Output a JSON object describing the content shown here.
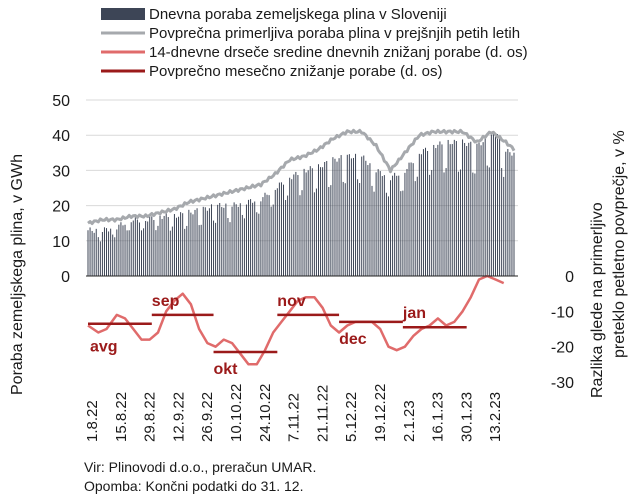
{
  "chart_data": {
    "type": "bar",
    "title": "",
    "ylabel": "Poraba zemeljskega plina, v GWh",
    "ylabel_right": "Razlika glede na primerljivo preteklo petletno povprečje, v %",
    "ylim": [
      0,
      50
    ],
    "yticks": [
      "50",
      "40",
      "30",
      "20",
      "10",
      "0"
    ],
    "ylim_right": [
      -30,
      0
    ],
    "yticks_right": [
      "0",
      "-10",
      "-20",
      "-30"
    ],
    "xticks": [
      "1.8.22",
      "15.8.22",
      "29.8.22",
      "12.9.22",
      "26.9.22",
      "10.10.22",
      "24.10.22",
      "7.11.22",
      "21.11.22",
      "5.12.22",
      "19.12.22",
      "2.1.23",
      "16.1.23",
      "30.1.23",
      "13.2.23"
    ],
    "legend": [
      {
        "name": "Dnevna poraba zemeljskega plina v Sloveniji",
        "type": "bar",
        "color": "#3d4556"
      },
      {
        "name": "Povprečna primerljiva poraba plina v prejšnjih petih letih",
        "type": "line",
        "color": "#a6a9ad"
      },
      {
        "name": "14-dnevne drseče sredine dnevnih znižanj porabe (d. os)",
        "type": "line",
        "color": "#e06b6b"
      },
      {
        "name": "Povprečno mesečno znižanje porabe (d. os)",
        "type": "line",
        "color": "#9b1a1a"
      }
    ],
    "series": [
      {
        "name": "Dnevna poraba zemeljskega plina v Sloveniji",
        "kind": "daily",
        "anchors": [
          [
            0,
            13
          ],
          [
            7,
            13
          ],
          [
            14,
            14
          ],
          [
            21,
            16
          ],
          [
            28,
            16
          ],
          [
            35,
            17
          ],
          [
            42,
            17
          ],
          [
            49,
            18
          ],
          [
            56,
            19
          ],
          [
            63,
            20
          ],
          [
            70,
            20
          ],
          [
            77,
            21
          ],
          [
            84,
            22
          ],
          [
            91,
            25
          ],
          [
            98,
            28
          ],
          [
            105,
            30
          ],
          [
            112,
            31
          ],
          [
            119,
            33
          ],
          [
            126,
            34
          ],
          [
            133,
            34
          ],
          [
            140,
            30
          ],
          [
            147,
            28
          ],
          [
            154,
            30
          ],
          [
            161,
            35
          ],
          [
            168,
            37
          ],
          [
            175,
            38
          ],
          [
            182,
            38
          ],
          [
            189,
            37
          ],
          [
            196,
            40
          ],
          [
            199,
            41
          ],
          [
            202,
            36
          ],
          [
            205,
            35
          ],
          [
            207,
            35
          ]
        ]
      },
      {
        "name": "Povprečna primerljiva poraba plina v prejšnjih petih letih",
        "anchors": [
          [
            0,
            15
          ],
          [
            7,
            16
          ],
          [
            14,
            16
          ],
          [
            21,
            17
          ],
          [
            28,
            17
          ],
          [
            35,
            18
          ],
          [
            42,
            19
          ],
          [
            49,
            21
          ],
          [
            56,
            22
          ],
          [
            63,
            23
          ],
          [
            70,
            24
          ],
          [
            77,
            25
          ],
          [
            84,
            26
          ],
          [
            91,
            29
          ],
          [
            98,
            33
          ],
          [
            105,
            34
          ],
          [
            112,
            36
          ],
          [
            119,
            39
          ],
          [
            126,
            41
          ],
          [
            133,
            41
          ],
          [
            140,
            37
          ],
          [
            147,
            30
          ],
          [
            154,
            35
          ],
          [
            161,
            40
          ],
          [
            168,
            41
          ],
          [
            175,
            41
          ],
          [
            182,
            41
          ],
          [
            189,
            38
          ],
          [
            196,
            41
          ],
          [
            203,
            38
          ],
          [
            207,
            36
          ]
        ]
      },
      {
        "name": "14-dnevne drseče sredine dnevnih znižanj porabe (d. os)",
        "anchors": [
          [
            0,
            -14
          ],
          [
            5,
            -16
          ],
          [
            9,
            -15
          ],
          [
            14,
            -11
          ],
          [
            18,
            -12
          ],
          [
            22,
            -15
          ],
          [
            26,
            -18
          ],
          [
            30,
            -18
          ],
          [
            34,
            -16
          ],
          [
            38,
            -10
          ],
          [
            42,
            -7
          ],
          [
            46,
            -5
          ],
          [
            50,
            -8
          ],
          [
            54,
            -15
          ],
          [
            58,
            -19
          ],
          [
            62,
            -20
          ],
          [
            66,
            -18
          ],
          [
            70,
            -19
          ],
          [
            74,
            -22
          ],
          [
            78,
            -25
          ],
          [
            82,
            -25
          ],
          [
            86,
            -21
          ],
          [
            90,
            -16
          ],
          [
            94,
            -13
          ],
          [
            98,
            -10
          ],
          [
            102,
            -7
          ],
          [
            106,
            -6
          ],
          [
            110,
            -6
          ],
          [
            114,
            -9
          ],
          [
            118,
            -14
          ],
          [
            122,
            -16
          ],
          [
            126,
            -14
          ],
          [
            130,
            -13
          ],
          [
            134,
            -13
          ],
          [
            138,
            -13
          ],
          [
            142,
            -15
          ],
          [
            146,
            -20
          ],
          [
            150,
            -21
          ],
          [
            154,
            -20
          ],
          [
            158,
            -17
          ],
          [
            162,
            -15
          ],
          [
            166,
            -14
          ],
          [
            170,
            -12
          ],
          [
            174,
            -14
          ],
          [
            178,
            -13
          ],
          [
            182,
            -10
          ],
          [
            186,
            -6
          ],
          [
            190,
            -1
          ],
          [
            194,
            0
          ],
          [
            198,
            -1
          ],
          [
            202,
            -2
          ]
        ]
      },
      {
        "name": "Povprečno mesečno znižanje porabe (d. os)",
        "segments": [
          {
            "month": "avg",
            "start": 0,
            "end": 31,
            "value": -13.5
          },
          {
            "month": "sep",
            "start": 31,
            "end": 61,
            "value": -11
          },
          {
            "month": "okt",
            "start": 61,
            "end": 92,
            "value": -21.5
          },
          {
            "month": "nov",
            "start": 92,
            "end": 122,
            "value": -11
          },
          {
            "month": "dec",
            "start": 122,
            "end": 153,
            "value": -13
          },
          {
            "month": "jan",
            "start": 153,
            "end": 184,
            "value": -14.5
          }
        ]
      }
    ]
  },
  "source": {
    "line1": "Vir: Plinovodi d.o.o., preračun UMAR.",
    "line2": "Opomba: Končni podatki do 31. 12."
  },
  "colors": {
    "bars": "#3d4556",
    "avg5y": "#a6a9ad",
    "ma14": "#e06b6b",
    "monthly": "#9b1a1a",
    "grid": "#d9d9d9"
  }
}
